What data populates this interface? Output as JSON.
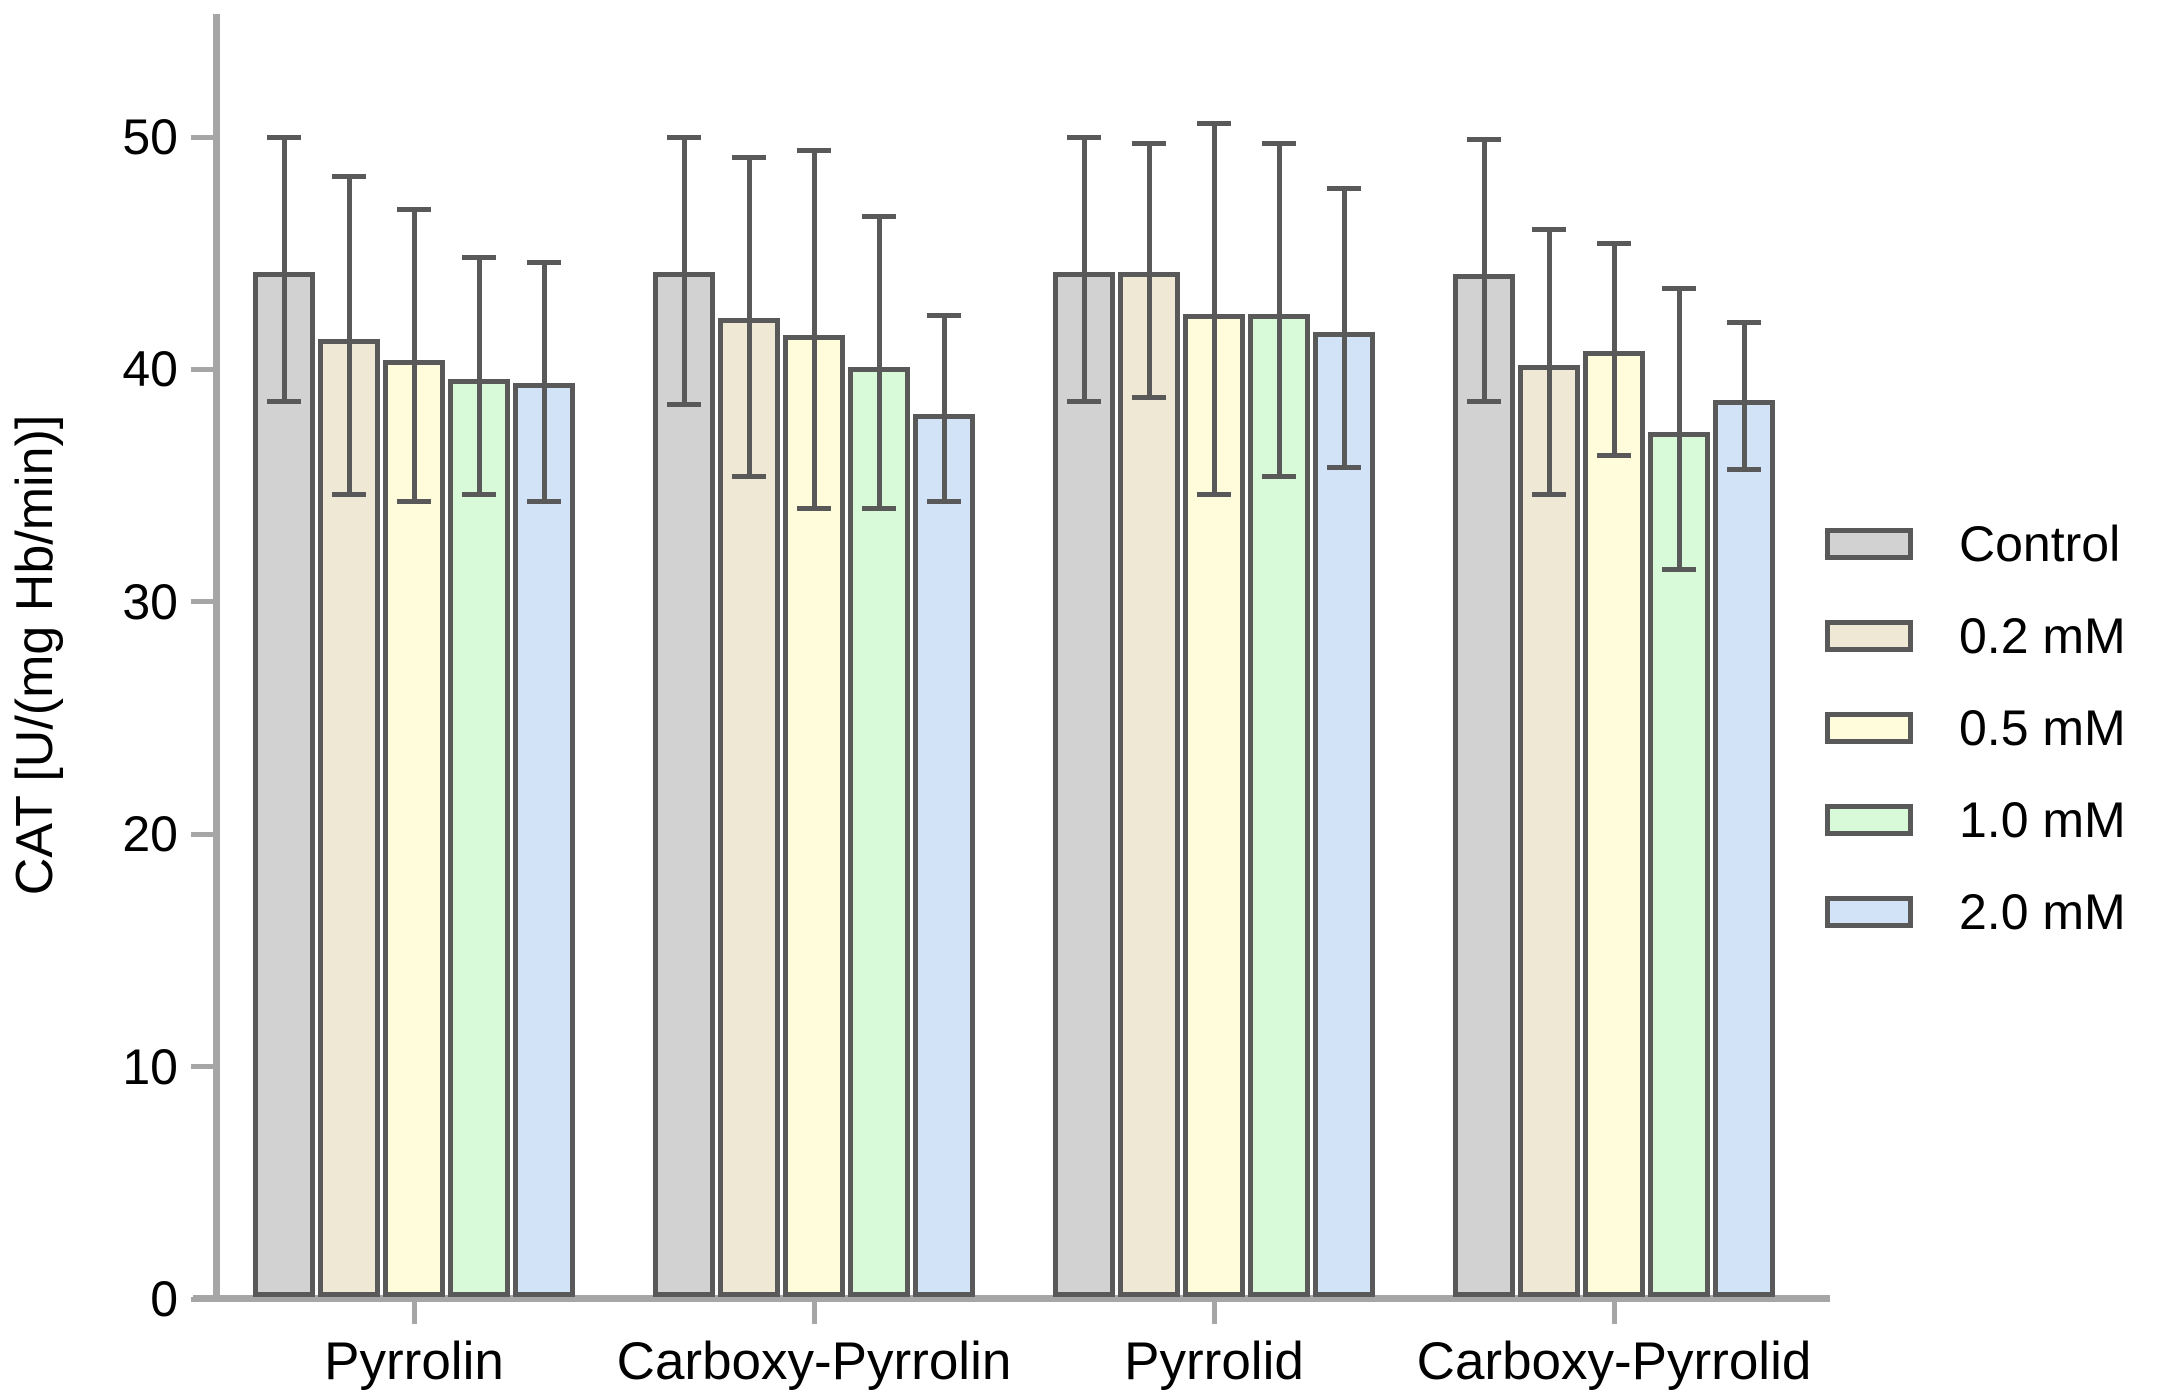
{
  "chart_data": {
    "type": "bar",
    "title": "",
    "xlabel": "",
    "ylabel": "CAT [U/(mg Hb/min)]",
    "categories": [
      "Pyrrolin",
      "Carboxy-Pyrrolin",
      "Pyrrolid",
      "Carboxy-Pyrrolid"
    ],
    "yticks": [
      0,
      10,
      20,
      30,
      40,
      50
    ],
    "ylim": [
      0,
      55.3
    ],
    "grid": false,
    "legend_position": "right",
    "error_bars": "symmetric-caps, values below are absolute upper/lower endpoints",
    "series": [
      {
        "name": "Control",
        "fill": "#d2d2d2",
        "values": [
          44.2,
          44.2,
          44.2,
          44.1
        ],
        "err_hi": [
          50.0,
          50.0,
          50.0,
          49.9
        ],
        "err_lo": [
          38.6,
          38.5,
          38.6,
          38.6
        ]
      },
      {
        "name": "0.2 mM",
        "fill": "#efe8d4",
        "values": [
          41.3,
          42.2,
          44.2,
          40.2
        ],
        "err_hi": [
          48.3,
          49.1,
          49.7,
          46.0
        ],
        "err_lo": [
          34.6,
          35.4,
          38.8,
          34.6
        ]
      },
      {
        "name": "0.5 mM",
        "fill": "#fefcdb",
        "values": [
          40.4,
          41.5,
          42.4,
          40.8
        ],
        "err_hi": [
          46.9,
          49.4,
          50.6,
          45.4
        ],
        "err_lo": [
          34.3,
          34.0,
          34.6,
          36.3
        ]
      },
      {
        "name": "1.0 mM",
        "fill": "#d9fad9",
        "values": [
          39.6,
          40.1,
          42.4,
          37.3
        ],
        "err_hi": [
          44.8,
          46.6,
          49.7,
          43.5
        ],
        "err_lo": [
          34.6,
          34.0,
          35.4,
          31.4
        ]
      },
      {
        "name": "2.0 mM",
        "fill": "#d3e3f7",
        "values": [
          39.4,
          38.1,
          41.6,
          38.7
        ],
        "err_hi": [
          44.6,
          42.3,
          47.8,
          42.0
        ],
        "err_lo": [
          34.3,
          34.3,
          35.8,
          35.7
        ]
      }
    ]
  },
  "colors": {
    "background": "#ffffff",
    "axis": "#a6a6a6",
    "bar_border": "#595959",
    "error_bar": "#595959",
    "text": "#000000"
  }
}
